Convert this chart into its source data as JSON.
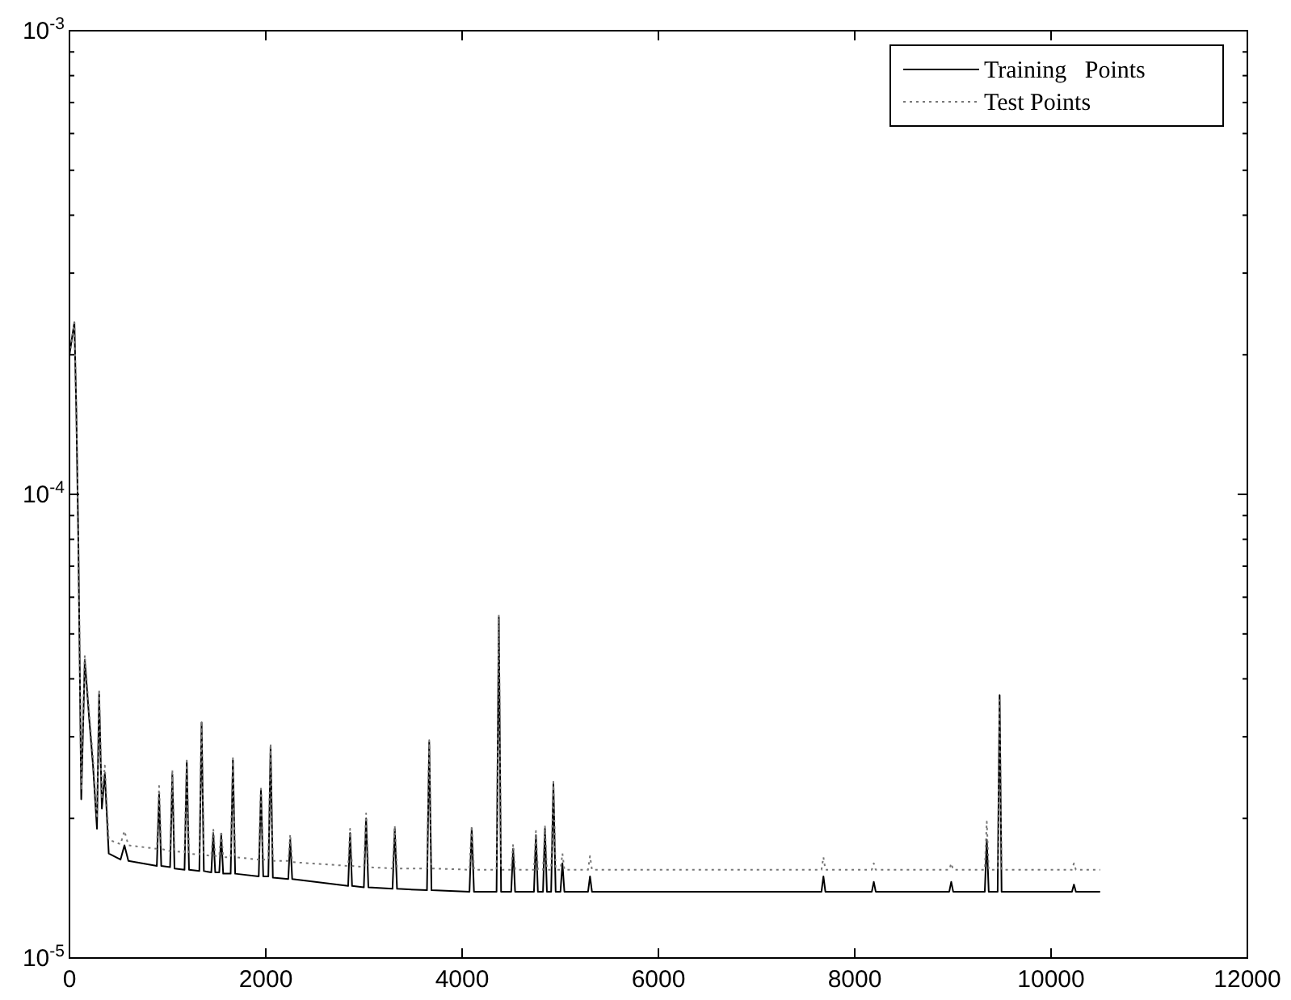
{
  "chart_data": {
    "type": "line",
    "log": "y",
    "grid": false,
    "legend": "top right",
    "xlim": [
      0,
      12000
    ],
    "xticks": [
      0,
      2000,
      4000,
      6000,
      8000,
      10000,
      12000
    ],
    "ylim": [
      1e-05,
      0.001
    ],
    "yticks": [
      {
        "value": 1e-05,
        "label": "10$^{-5}$"
      },
      {
        "value": 2e-05,
        "label": null
      },
      {
        "value": 3e-05,
        "label": null
      },
      {
        "value": 4e-05,
        "label": null
      },
      {
        "value": 5e-05,
        "label": null
      },
      {
        "value": 6e-05,
        "label": null
      },
      {
        "value": 7e-05,
        "label": null
      },
      {
        "value": 8e-05,
        "label": null
      },
      {
        "value": 9e-05,
        "label": null
      },
      {
        "value": 0.0001,
        "label": "10$^{-4}$"
      },
      {
        "value": 0.0002,
        "label": null
      },
      {
        "value": 0.0003,
        "label": null
      },
      {
        "value": 0.0004,
        "label": null
      },
      {
        "value": 0.0005,
        "label": null
      },
      {
        "value": 0.0006,
        "label": null
      },
      {
        "value": 0.0007,
        "label": null
      },
      {
        "value": 0.0008,
        "label": null
      },
      {
        "value": 0.0009,
        "label": null
      },
      {
        "value": 0.001,
        "label": "10$^{-3}$"
      }
    ],
    "x": [
      0,
      50,
      70,
      90,
      120,
      156,
      200,
      240,
      280,
      302,
      330,
      360,
      400,
      520,
      560,
      600,
      890,
      913,
      935,
      1025,
      1048,
      1070,
      1172,
      1195,
      1218,
      1323,
      1346,
      1369,
      1445,
      1465,
      1485,
      1526,
      1546,
      1566,
      1642,
      1665,
      1688,
      1928,
      1951,
      1974,
      2026,
      2049,
      2072,
      2229,
      2249,
      2269,
      2839,
      2859,
      2879,
      2999,
      3022,
      3045,
      3291,
      3314,
      3337,
      3642,
      3665,
      3688,
      4075,
      4098,
      4121,
      4351,
      4374,
      4397,
      4500,
      4520,
      4540,
      4732,
      4752,
      4772,
      4824,
      4844,
      4864,
      4907,
      4930,
      4953,
      5002,
      5022,
      5042,
      5283,
      5303,
      5323,
      7661,
      7681,
      7701,
      8174,
      8194,
      8214,
      8963,
      8983,
      9003,
      9325,
      9345,
      9365,
      9456,
      9476,
      9496,
      10213,
      10233,
      10253,
      10500
    ],
    "series": [
      {
        "name": "Training   Points",
        "color": "#000000",
        "line_style": "solid",
        "values": [
          0.0002,
          0.000235,
          0.00015,
          8e-05,
          2.2e-05,
          4.4e-05,
          3.3e-05,
          2.6e-05,
          1.9e-05,
          3.7e-05,
          2.1e-05,
          2.5e-05,
          1.68e-05,
          1.63e-05,
          1.75e-05,
          1.62e-05,
          1.58e-05,
          2.25e-05,
          1.58e-05,
          1.57e-05,
          2.49e-05,
          1.56e-05,
          1.55e-05,
          2.64e-05,
          1.55e-05,
          1.54e-05,
          3.22e-05,
          1.54e-05,
          1.53e-05,
          1.86e-05,
          1.53e-05,
          1.53e-05,
          1.84e-05,
          1.52e-05,
          1.52e-05,
          2.67e-05,
          1.52e-05,
          1.5e-05,
          2.3e-05,
          1.5e-05,
          1.5e-05,
          2.86e-05,
          1.49e-05,
          1.48e-05,
          1.8e-05,
          1.48e-05,
          1.43e-05,
          1.86e-05,
          1.43e-05,
          1.42e-05,
          2e-05,
          1.42e-05,
          1.41e-05,
          1.9e-05,
          1.41e-05,
          1.4e-05,
          2.92e-05,
          1.4e-05,
          1.39e-05,
          1.9e-05,
          1.39e-05,
          1.39e-05,
          5.43e-05,
          1.39e-05,
          1.39e-05,
          1.72e-05,
          1.39e-05,
          1.39e-05,
          1.84e-05,
          1.39e-05,
          1.39e-05,
          1.9e-05,
          1.39e-05,
          1.39e-05,
          2.37e-05,
          1.39e-05,
          1.39e-05,
          1.6e-05,
          1.39e-05,
          1.39e-05,
          1.5e-05,
          1.39e-05,
          1.39e-05,
          1.5e-05,
          1.39e-05,
          1.39e-05,
          1.46e-05,
          1.39e-05,
          1.39e-05,
          1.46e-05,
          1.39e-05,
          1.39e-05,
          1.8e-05,
          1.39e-05,
          1.39e-05,
          3.69e-05,
          1.39e-05,
          1.39e-05,
          1.44e-05,
          1.39e-05,
          1.39e-05
        ]
      },
      {
        "name": "Test Points",
        "color": "#777777",
        "line_style": "dotted",
        "values": [
          0.0002,
          0.000235,
          0.00015,
          8.2e-05,
          2.3e-05,
          4.5e-05,
          3.4e-05,
          2.7e-05,
          2e-05,
          3.8e-05,
          2.2e-05,
          2.6e-05,
          1.8e-05,
          1.76e-05,
          1.88e-05,
          1.75e-05,
          1.72e-05,
          2.35e-05,
          1.72e-05,
          1.7e-05,
          2.55e-05,
          1.7e-05,
          1.69e-05,
          2.7e-05,
          1.68e-05,
          1.67e-05,
          3.25e-05,
          1.67e-05,
          1.66e-05,
          1.9e-05,
          1.66e-05,
          1.66e-05,
          1.88e-05,
          1.65e-05,
          1.65e-05,
          2.7e-05,
          1.65e-05,
          1.63e-05,
          2.35e-05,
          1.63e-05,
          1.63e-05,
          2.9e-05,
          1.62e-05,
          1.62e-05,
          1.85e-05,
          1.61e-05,
          1.58e-05,
          1.9e-05,
          1.58e-05,
          1.57e-05,
          2.05e-05,
          1.57e-05,
          1.56e-05,
          1.93e-05,
          1.56e-05,
          1.56e-05,
          2.95e-05,
          1.56e-05,
          1.55e-05,
          1.93e-05,
          1.55e-05,
          1.55e-05,
          5.5e-05,
          1.55e-05,
          1.55e-05,
          1.76e-05,
          1.55e-05,
          1.55e-05,
          1.88e-05,
          1.55e-05,
          1.55e-05,
          1.93e-05,
          1.55e-05,
          1.55e-05,
          2.4e-05,
          1.55e-05,
          1.55e-05,
          1.68e-05,
          1.55e-05,
          1.55e-05,
          1.66e-05,
          1.55e-05,
          1.55e-05,
          1.65e-05,
          1.55e-05,
          1.55e-05,
          1.6e-05,
          1.55e-05,
          1.55e-05,
          1.6e-05,
          1.55e-05,
          1.55e-05,
          1.97e-05,
          1.55e-05,
          1.55e-05,
          3.6e-05,
          1.55e-05,
          1.55e-05,
          1.6e-05,
          1.55e-05,
          1.55e-05
        ]
      }
    ]
  }
}
